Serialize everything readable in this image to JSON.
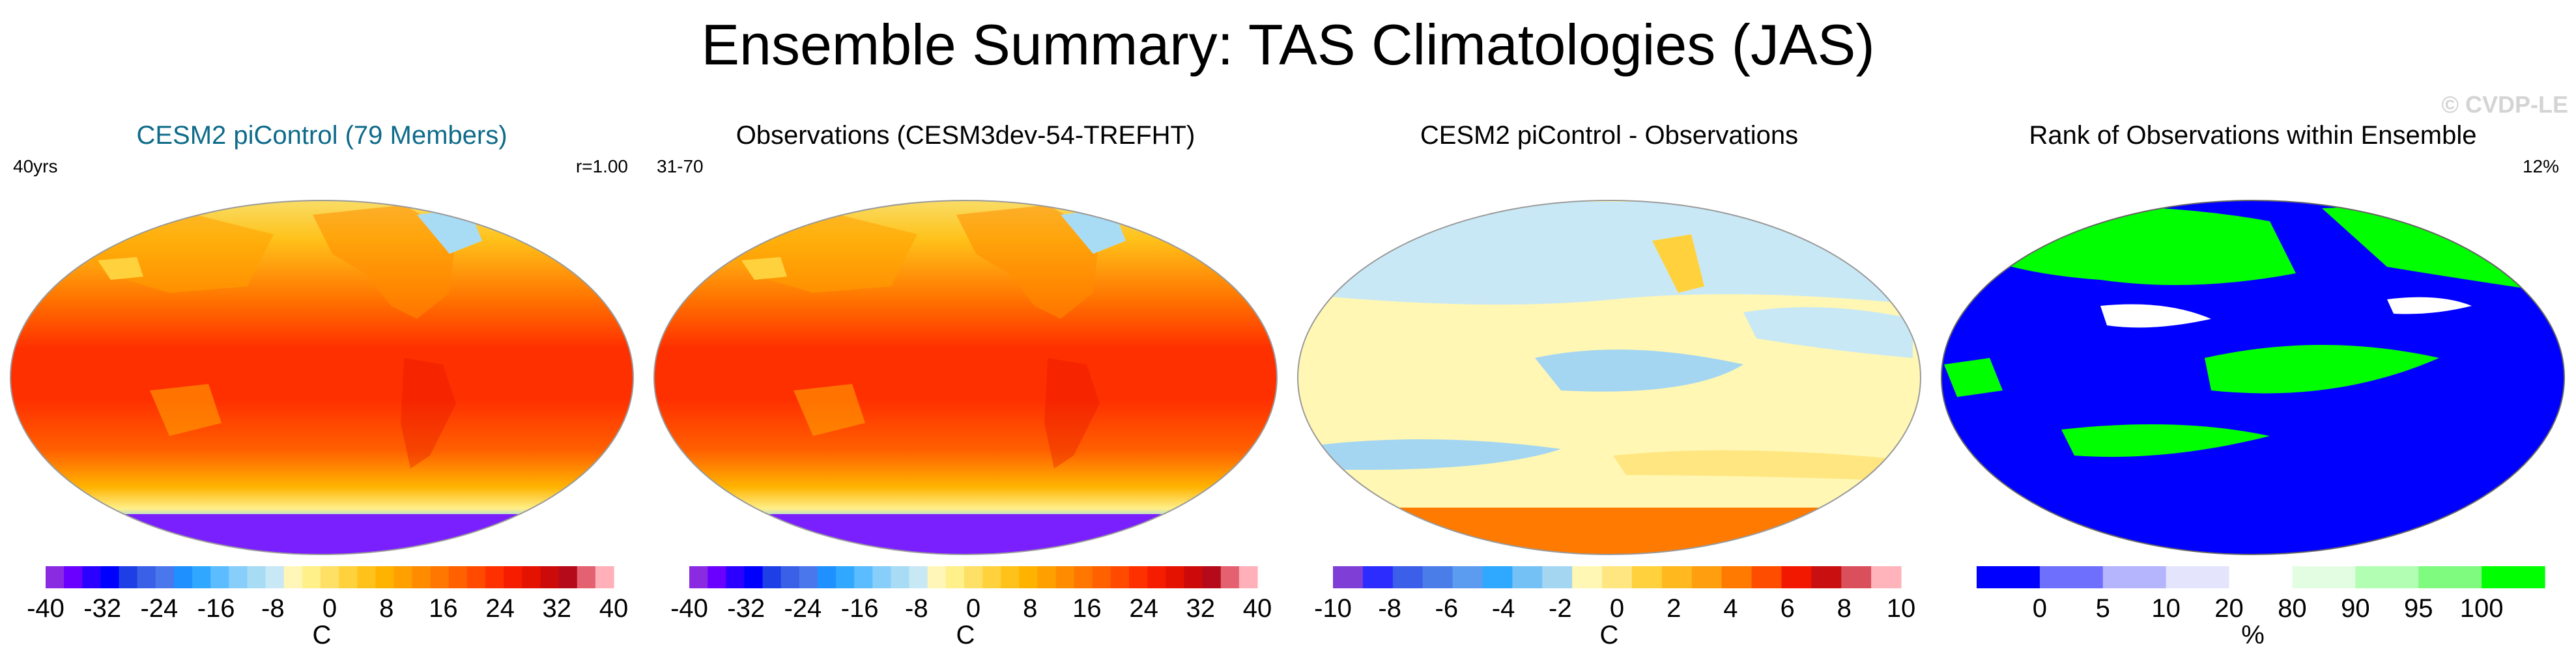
{
  "title": "Ensemble Summary: TAS Climatologies (JAS)",
  "watermark": "© CVDP-LE",
  "colors": {
    "temp_scale": [
      "#8a2be2",
      "#6a00ff",
      "#2b00ff",
      "#0000ff",
      "#1e3fe6",
      "#3a60e8",
      "#4a78ec",
      "#1e90ff",
      "#31a8ff",
      "#5bbcff",
      "#87cefa",
      "#a8dcf5",
      "#c9e8f6",
      "#fff6b8",
      "#fff08a",
      "#ffe066",
      "#ffd23d",
      "#ffc21a",
      "#ffb300",
      "#ffa000",
      "#ff8c00",
      "#ff7600",
      "#ff6000",
      "#ff4a00",
      "#ff3000",
      "#f51c00",
      "#e41200",
      "#cc0a0a",
      "#b50a1a",
      "#e36170",
      "#ffb0b8"
    ],
    "diff_scale": [
      "#7f3fd6",
      "#2c2cff",
      "#3b5fe8",
      "#4a7de8",
      "#5b9bf0",
      "#2fa8ff",
      "#74c2f5",
      "#a4d6f2",
      "#fff7b3",
      "#ffe680",
      "#ffd23d",
      "#ffb91f",
      "#ff9f0f",
      "#ff7a00",
      "#ff4d00",
      "#f21800",
      "#c90f0f",
      "#d9505c",
      "#ffb3ba"
    ],
    "rank_scale": [
      "#0000ff",
      "#6f6ffe",
      "#b5b5fd",
      "#e4e4fc",
      "#ffffff",
      "#e3fde3",
      "#b2feb2",
      "#7ffb7f",
      "#00ff00"
    ]
  },
  "panels": [
    {
      "title": "CESM2 piControl (79 Members)",
      "title_color": "#0e6b8a",
      "left_label": "40yrs",
      "right_label": "r=1.00",
      "colorbar": {
        "ticks": [
          "-40",
          "-32",
          "-24",
          "-16",
          "-8",
          "0",
          "8",
          "16",
          "24",
          "32",
          "40"
        ],
        "unit": "C"
      }
    },
    {
      "title": "Observations (CESM3dev-54-TREFHT)",
      "title_color": "#000000",
      "left_label": "31-70",
      "right_label": "",
      "colorbar": {
        "ticks": [
          "-40",
          "-32",
          "-24",
          "-16",
          "-8",
          "0",
          "8",
          "16",
          "24",
          "32",
          "40"
        ],
        "unit": "C"
      }
    },
    {
      "title": "CESM2 piControl - Observations",
      "title_color": "#000000",
      "left_label": "",
      "right_label": "",
      "colorbar": {
        "ticks": [
          "-10",
          "-8",
          "-6",
          "-4",
          "-2",
          "0",
          "2",
          "4",
          "6",
          "8",
          "10"
        ],
        "unit": "C"
      }
    },
    {
      "title": "Rank of Observations within Ensemble",
      "title_color": "#000000",
      "left_label": "",
      "right_label": "12%",
      "colorbar": {
        "ticks": [
          "0",
          "5",
          "10",
          "20",
          "80",
          "90",
          "95",
          "100"
        ],
        "unit": "%"
      }
    }
  ],
  "chart_data": [
    {
      "type": "heatmap",
      "title": "CESM2 piControl (79 Members)",
      "variable": "TAS climatology JAS",
      "unit": "C",
      "color_range": [
        -40,
        40
      ],
      "contour_interval": 4,
      "zonal_mean_profile": {
        "lat": [
          80,
          60,
          40,
          20,
          0,
          -20,
          -40,
          -60,
          -80
        ],
        "tas": [
          2,
          12,
          22,
          28,
          27,
          22,
          12,
          -2,
          -45
        ]
      },
      "annotations": [
        "40yrs",
        "r=1.00"
      ]
    },
    {
      "type": "heatmap",
      "title": "Observations (CESM3dev-54-TREFHT)",
      "variable": "TAS climatology JAS",
      "unit": "C",
      "color_range": [
        -40,
        40
      ],
      "contour_interval": 4,
      "zonal_mean_profile": {
        "lat": [
          80,
          60,
          40,
          20,
          0,
          -20,
          -40,
          -60,
          -80
        ],
        "tas": [
          1,
          12,
          22,
          28,
          27,
          22,
          12,
          -3,
          -48
        ]
      },
      "annotations": [
        "31-70"
      ]
    },
    {
      "type": "heatmap",
      "title": "CESM2 piControl - Observations",
      "variable": "TAS difference",
      "unit": "C",
      "color_range": [
        -10,
        10
      ],
      "contour_interval": 1
    },
    {
      "type": "heatmap",
      "title": "Rank of Observations within Ensemble",
      "variable": "rank",
      "unit": "%",
      "color_levels": [
        0,
        5,
        10,
        20,
        80,
        90,
        95,
        100
      ],
      "annotations": [
        "12%"
      ]
    }
  ]
}
